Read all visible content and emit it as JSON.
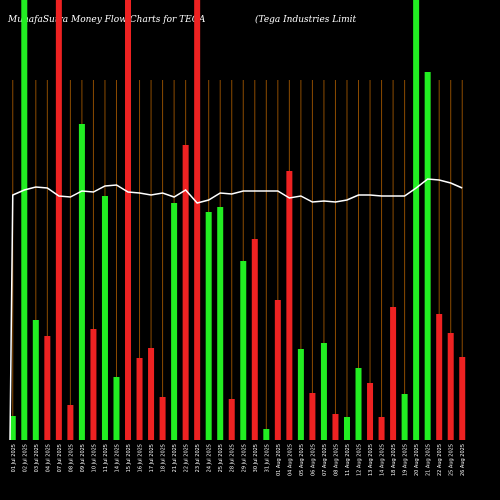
{
  "chart_data": {
    "type": "bar",
    "title": "MunafaSutra  Money Flow  Charts for TEGA",
    "subtitle": "(Tega  Industries Limit",
    "categories": [
      "01 Jul 2025",
      "02 Jul 2025",
      "03 Jul 2025",
      "04 Jul 2025",
      "07 Jul 2025",
      "08 Jul 2025",
      "09 Jul 2025",
      "10 Jul 2025",
      "11 Jul 2025",
      "14 Jul 2025",
      "15 Jul 2025",
      "16 Jul 2025",
      "17 Jul 2025",
      "18 Jul 2025",
      "21 Jul 2025",
      "22 Jul 2025",
      "23 Jul 2025",
      "24 Jul 2025",
      "25 Jul 2025",
      "28 Jul 2025",
      "29 Jul 2025",
      "30 Jul 2025",
      "31 Jul 2025",
      "01 Aug 2025",
      "04 Aug 2025",
      "05 Aug 2025",
      "06 Aug 2025",
      "07 Aug 2025",
      "08 Aug 2025",
      "11 Aug 2025",
      "12 Aug 2025",
      "13 Aug 2025",
      "14 Aug 2025",
      "18 Aug 2025",
      "19 Aug 2025",
      "20 Aug 2025",
      "21 Aug 2025",
      "22 Aug 2025",
      "25 Aug 2025",
      "26 Aug 2025"
    ],
    "values": [
      24,
      440,
      120,
      104,
      440,
      35,
      316,
      111,
      244,
      63,
      440,
      82,
      92,
      43,
      237,
      295,
      440,
      228,
      233,
      41,
      179,
      201,
      11,
      140,
      269,
      91,
      47,
      97,
      26,
      23,
      72,
      57,
      23,
      133,
      46,
      440,
      368,
      126,
      107,
      83
    ],
    "bar_colors": [
      "#22ee22",
      "#22ee22",
      "#22ee22",
      "#ee2222",
      "#ee2222",
      "#ee2222",
      "#22ee22",
      "#ee2222",
      "#22ee22",
      "#22ee22",
      "#ee2222",
      "#ee2222",
      "#ee2222",
      "#ee2222",
      "#22ee22",
      "#ee2222",
      "#ee2222",
      "#22ee22",
      "#22ee22",
      "#ee2222",
      "#22ee22",
      "#ee2222",
      "#22ee22",
      "#ee2222",
      "#ee2222",
      "#22ee22",
      "#ee2222",
      "#22ee22",
      "#ee2222",
      "#22ee22",
      "#22ee22",
      "#ee2222",
      "#ee2222",
      "#ee2222",
      "#22ee22",
      "#22ee22",
      "#22ee22",
      "#ee2222",
      "#ee2222",
      "#ee2222"
    ],
    "line": {
      "color": "#ffffff",
      "values": [
        245,
        250,
        253,
        252,
        244,
        243,
        249,
        248,
        254,
        255,
        248,
        247,
        245,
        247,
        243,
        250,
        237,
        240,
        247,
        246,
        249,
        249,
        249,
        249,
        242,
        244,
        238,
        239,
        238,
        240,
        245,
        245,
        244,
        244,
        244,
        252,
        261,
        260,
        257,
        252
      ]
    },
    "ylim": [
      0,
      440
    ]
  }
}
